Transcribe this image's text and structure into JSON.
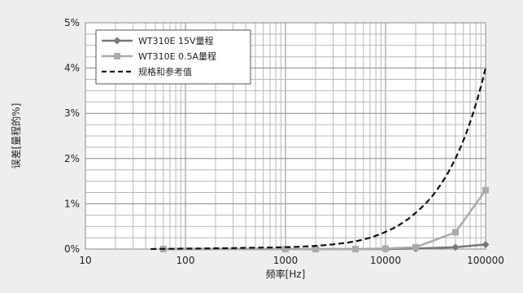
{
  "chart_data": {
    "type": "line",
    "xlabel": "频率[Hz]",
    "ylabel": "误差[量程的%]",
    "x_scale": "log",
    "xlim": [
      10,
      100000
    ],
    "ylim": [
      0,
      5
    ],
    "x_ticks": [
      10,
      100,
      1000,
      10000,
      100000
    ],
    "x_tick_labels": [
      "10",
      "100",
      "1000",
      "10000",
      "100000"
    ],
    "y_ticks": [
      0,
      1,
      2,
      3,
      4,
      5
    ],
    "y_tick_labels": [
      "0%",
      "1%",
      "2%",
      "3%",
      "4%",
      "5%"
    ],
    "grid": true,
    "legend_position": "top-left",
    "series": [
      {
        "name": "WT310E 15V量程",
        "color": "#777777",
        "marker": "diamond",
        "line": "solid",
        "points": [
          [
            60,
            0.0
          ],
          [
            1000,
            0.0
          ],
          [
            2000,
            0.0
          ],
          [
            5000,
            0.0
          ],
          [
            10000,
            0.0
          ],
          [
            20000,
            0.01
          ],
          [
            50000,
            0.04
          ],
          [
            100000,
            0.1
          ]
        ]
      },
      {
        "name": "WT310E 0.5A量程",
        "color": "#aaaaaa",
        "marker": "square",
        "line": "solid",
        "points": [
          [
            60,
            0.0
          ],
          [
            1000,
            0.0
          ],
          [
            2000,
            0.0
          ],
          [
            5000,
            0.0
          ],
          [
            10000,
            0.01
          ],
          [
            20000,
            0.04
          ],
          [
            50000,
            0.37
          ],
          [
            100000,
            1.3
          ]
        ]
      },
      {
        "name": "规格和参考值",
        "color": "#111111",
        "marker": "none",
        "line": "dashed",
        "points": [
          [
            45,
            0.0
          ],
          [
            100,
            0.01
          ],
          [
            500,
            0.03
          ],
          [
            1000,
            0.04
          ],
          [
            2000,
            0.07
          ],
          [
            5000,
            0.17
          ],
          [
            10000,
            0.38
          ],
          [
            20000,
            0.8
          ],
          [
            50000,
            2.0
          ],
          [
            100000,
            4.0
          ]
        ]
      }
    ]
  }
}
